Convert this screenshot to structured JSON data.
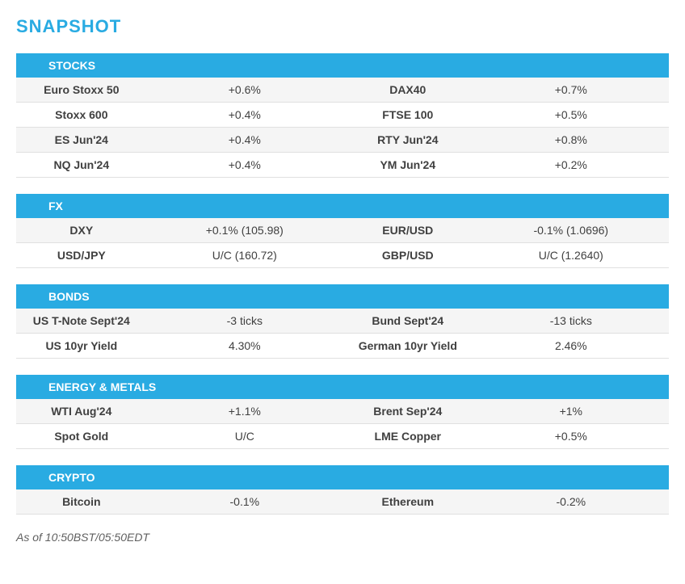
{
  "title": "SNAPSHOT",
  "footnote": "As of 10:50BST/05:50EDT",
  "colors": {
    "accent": "#29abe2",
    "text": "#404040",
    "row_alt": "#f5f5f5",
    "row_bg": "#ffffff",
    "border": "#e0e0e0"
  },
  "sections": [
    {
      "header": "STOCKS",
      "rows": [
        {
          "name1": "Euro Stoxx 50",
          "val1": "+0.6%",
          "name2": "DAX40",
          "val2": "+0.7%"
        },
        {
          "name1": "Stoxx 600",
          "val1": "+0.4%",
          "name2": "FTSE 100",
          "val2": "+0.5%"
        },
        {
          "name1": "ES Jun'24",
          "val1": "+0.4%",
          "name2": "RTY Jun'24",
          "val2": "+0.8%"
        },
        {
          "name1": "NQ Jun'24",
          "val1": "+0.4%",
          "name2": "YM Jun'24",
          "val2": "+0.2%"
        }
      ]
    },
    {
      "header": "FX",
      "rows": [
        {
          "name1": "DXY",
          "val1": "+0.1% (105.98)",
          "name2": "EUR/USD",
          "val2": "-0.1% (1.0696)"
        },
        {
          "name1": "USD/JPY",
          "val1": "U/C (160.72)",
          "name2": "GBP/USD",
          "val2": "U/C (1.2640)"
        }
      ]
    },
    {
      "header": "BONDS",
      "rows": [
        {
          "name1": "US T-Note Sept'24",
          "val1": "-3 ticks",
          "name2": "Bund Sept'24",
          "val2": "-13 ticks"
        },
        {
          "name1": "US 10yr Yield",
          "val1": "4.30%",
          "name2": "German 10yr Yield",
          "val2": "2.46%"
        }
      ]
    },
    {
      "header": "ENERGY & METALS",
      "rows": [
        {
          "name1": "WTI Aug'24",
          "val1": "+1.1%",
          "name2": "Brent Sep'24",
          "val2": "+1%"
        },
        {
          "name1": "Spot Gold",
          "val1": "U/C",
          "name2": "LME Copper",
          "val2": "+0.5%"
        }
      ]
    },
    {
      "header": "CRYPTO",
      "rows": [
        {
          "name1": "Bitcoin",
          "val1": "-0.1%",
          "name2": "Ethereum",
          "val2": "-0.2%"
        }
      ]
    }
  ]
}
